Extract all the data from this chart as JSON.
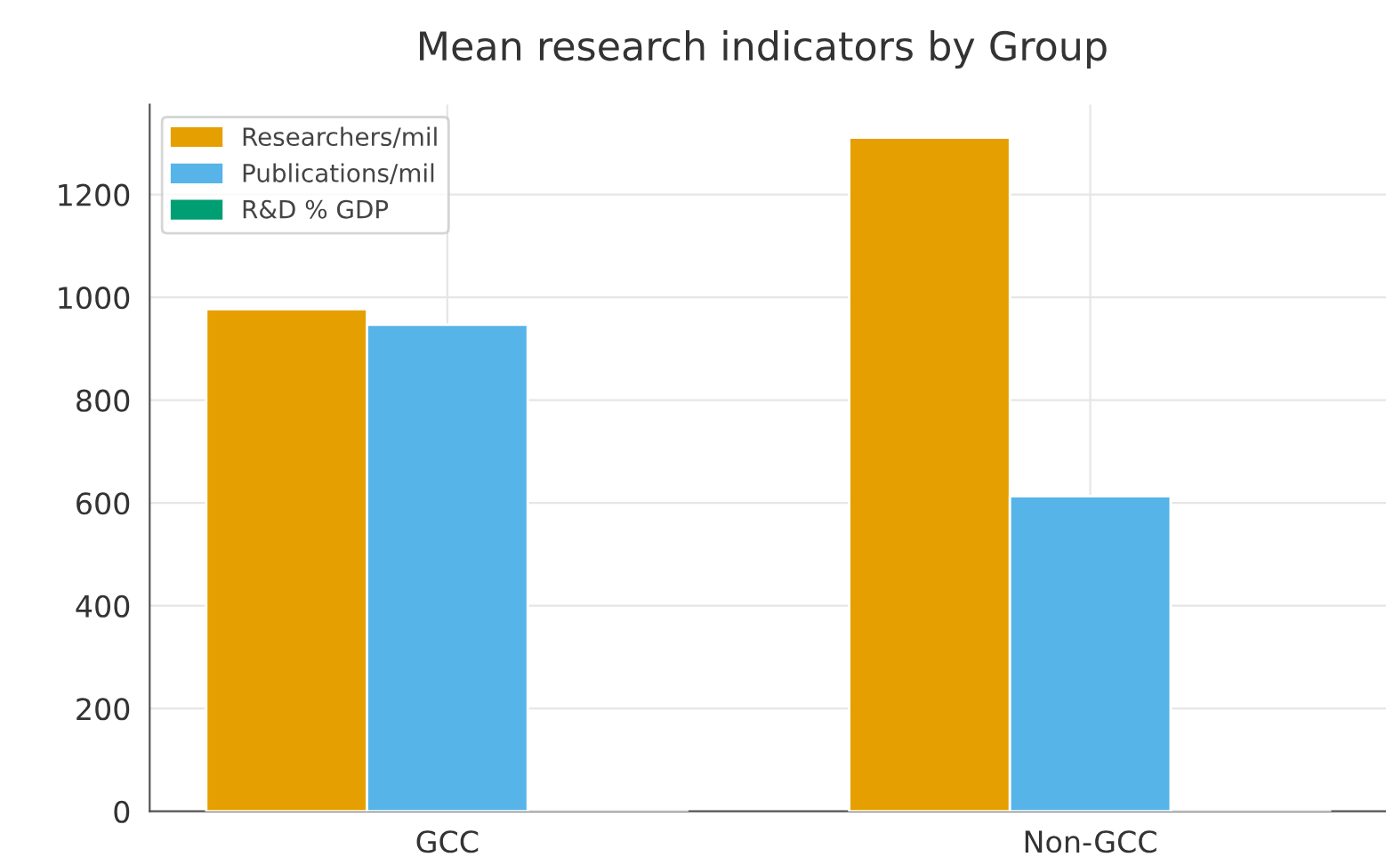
{
  "chart_data": {
    "type": "bar",
    "title": "Mean research indicators by Group",
    "categories": [
      "GCC",
      "Non-GCC"
    ],
    "series": [
      {
        "name": "Researchers/mil",
        "color": "#e69f00",
        "values": [
          977,
          1311
        ]
      },
      {
        "name": "Publications/mil",
        "color": "#56b4e9",
        "values": [
          947,
          613
        ]
      },
      {
        "name": "R&D % GDP",
        "color": "#009e73",
        "values": [
          null,
          null
        ]
      }
    ],
    "ylim": [
      0,
      1375
    ],
    "yticks": [
      0,
      200,
      400,
      600,
      800,
      1000,
      1200
    ],
    "grid": true,
    "legend": "top left"
  }
}
